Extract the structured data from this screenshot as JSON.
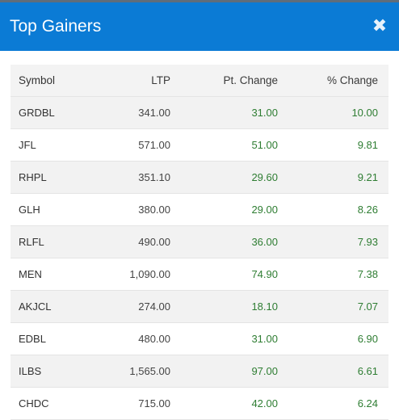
{
  "modal": {
    "title": "Top Gainers",
    "close_glyph": "✖"
  },
  "table": {
    "headers": {
      "symbol": "Symbol",
      "ltp": "LTP",
      "pt_change": "Pt. Change",
      "pct_change": "% Change"
    },
    "rows": [
      {
        "symbol": "GRDBL",
        "ltp": "341.00",
        "pt_change": "31.00",
        "pct_change": "10.00"
      },
      {
        "symbol": "JFL",
        "ltp": "571.00",
        "pt_change": "51.00",
        "pct_change": "9.81"
      },
      {
        "symbol": "RHPL",
        "ltp": "351.10",
        "pt_change": "29.60",
        "pct_change": "9.21"
      },
      {
        "symbol": "GLH",
        "ltp": "380.00",
        "pt_change": "29.00",
        "pct_change": "8.26"
      },
      {
        "symbol": "RLFL",
        "ltp": "490.00",
        "pt_change": "36.00",
        "pct_change": "7.93"
      },
      {
        "symbol": "MEN",
        "ltp": "1,090.00",
        "pt_change": "74.90",
        "pct_change": "7.38"
      },
      {
        "symbol": "AKJCL",
        "ltp": "274.00",
        "pt_change": "18.10",
        "pct_change": "7.07"
      },
      {
        "symbol": "EDBL",
        "ltp": "480.00",
        "pt_change": "31.00",
        "pct_change": "6.90"
      },
      {
        "symbol": "ILBS",
        "ltp": "1,565.00",
        "pt_change": "97.00",
        "pct_change": "6.61"
      },
      {
        "symbol": "CHDC",
        "ltp": "715.00",
        "pt_change": "42.00",
        "pct_change": "6.24"
      }
    ]
  },
  "colors": {
    "header_bg": "#0b7bd5",
    "gain_text": "#2e7d32",
    "stripe_bg": "#f2f2f2"
  }
}
